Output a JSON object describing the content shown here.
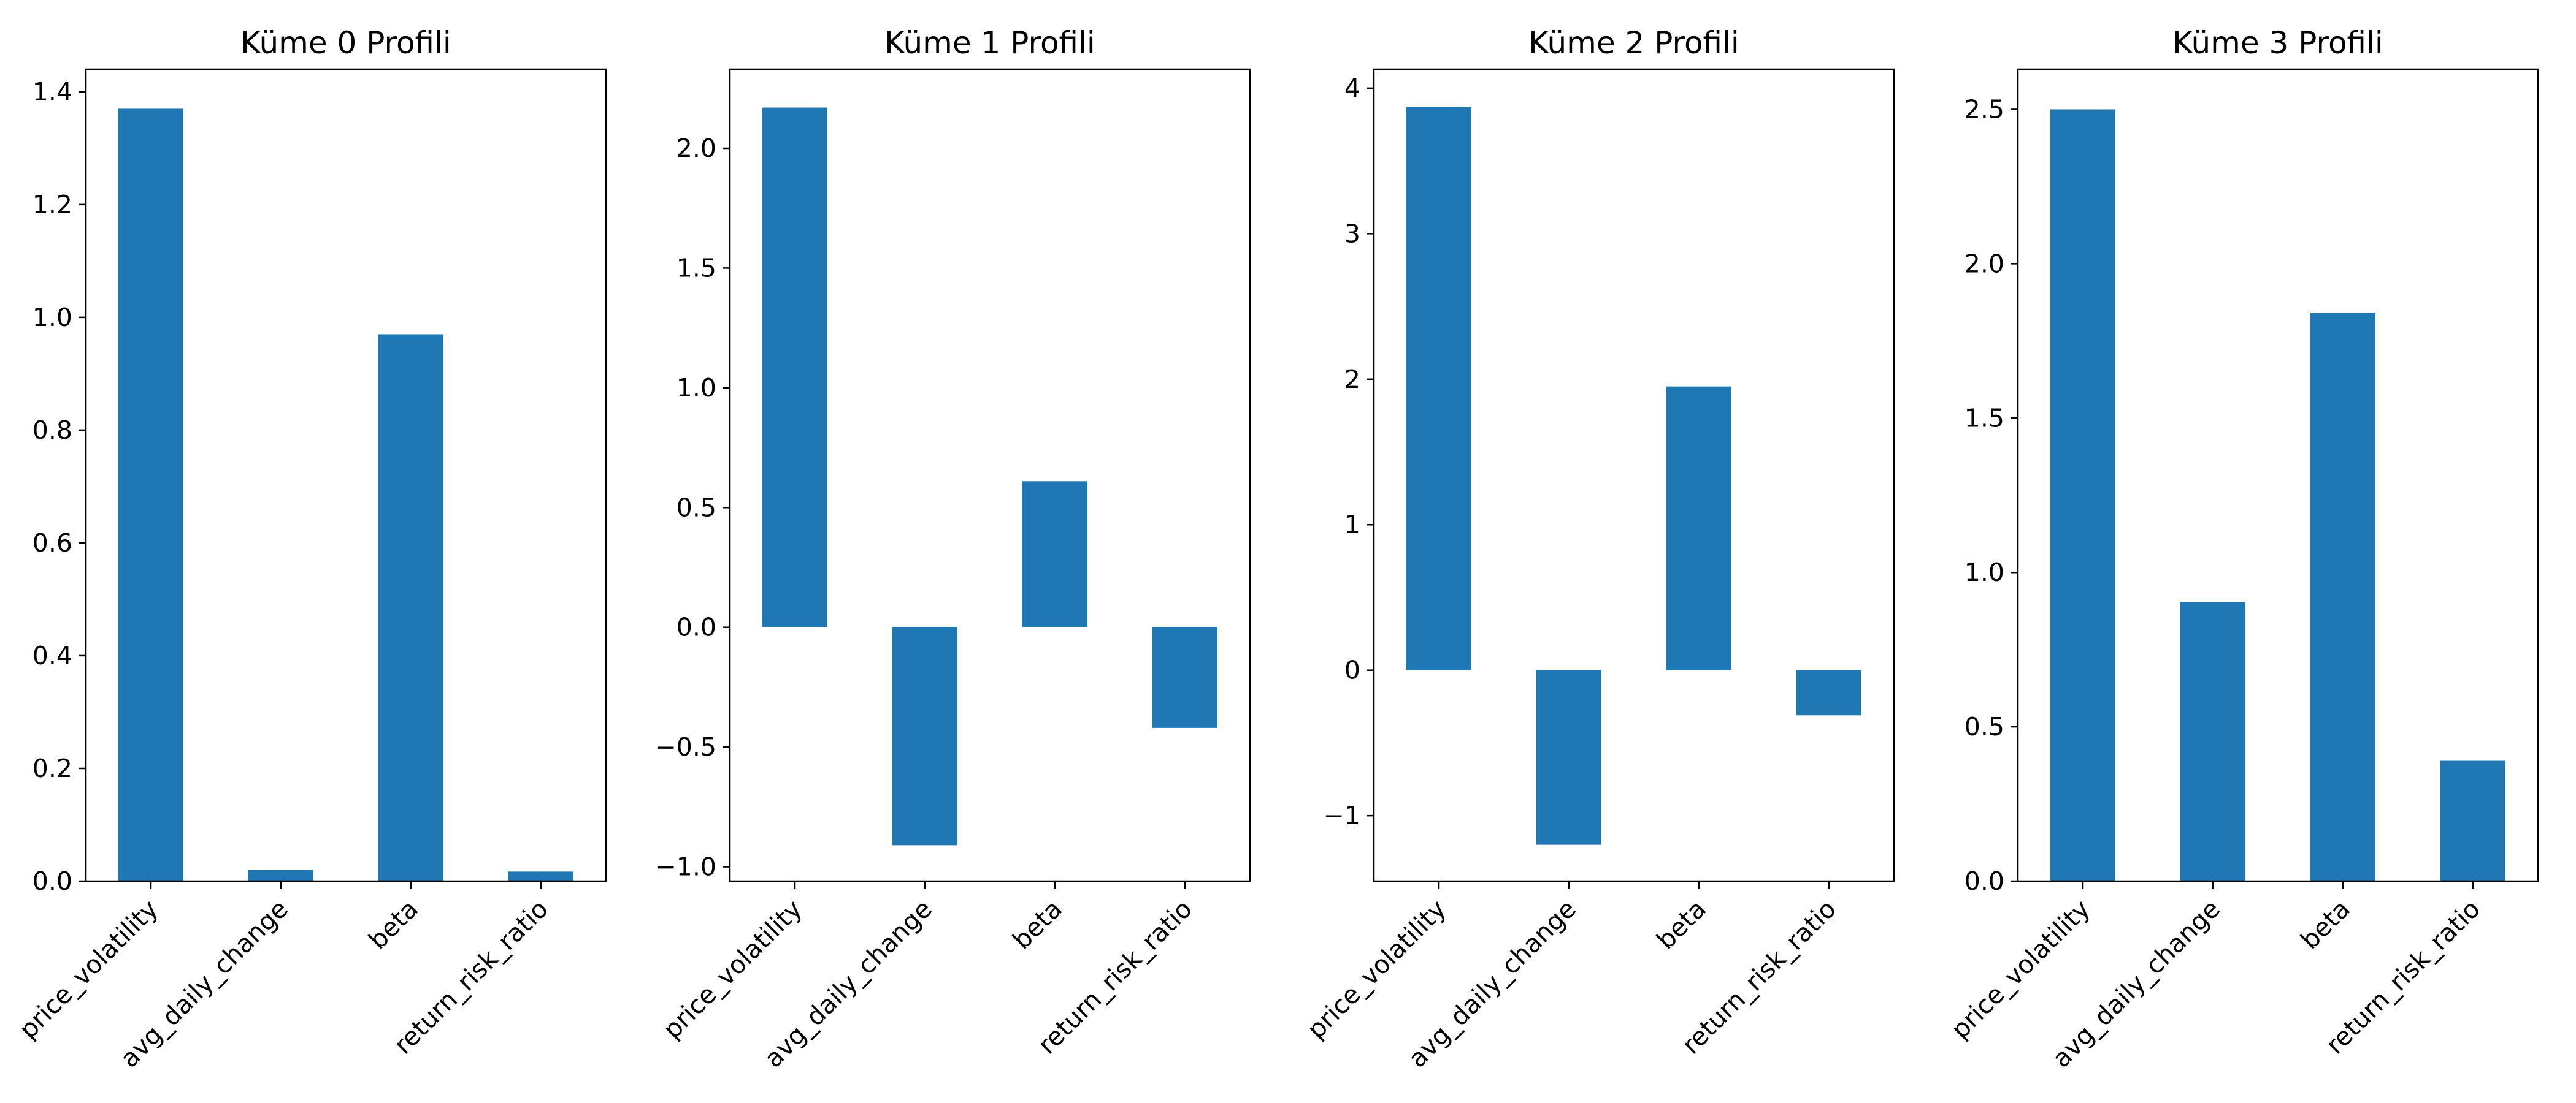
{
  "figure": {
    "bar_color": "#1f77b4",
    "axis_color": "#000000",
    "background": "#ffffff",
    "tick_label_rotation_deg": 45,
    "grid": false,
    "legend": "none"
  },
  "chart_data": [
    {
      "type": "bar",
      "title": "Küme 0 Profili",
      "categories": [
        "price_volatility",
        "avg_daily_change",
        "beta",
        "return_risk_ratio"
      ],
      "values": [
        1.37,
        0.02,
        0.97,
        0.017
      ],
      "ylim": [
        0,
        1.44
      ],
      "yticks": [
        0.0,
        0.2,
        0.4,
        0.6,
        0.8,
        1.0,
        1.2,
        1.4
      ],
      "ytick_labels": [
        "0.0",
        "0.2",
        "0.4",
        "0.6",
        "0.8",
        "1.0",
        "1.2",
        "1.4"
      ],
      "xlabel": "",
      "ylabel": ""
    },
    {
      "type": "bar",
      "title": "Küme 1 Profili",
      "categories": [
        "price_volatility",
        "avg_daily_change",
        "beta",
        "return_risk_ratio"
      ],
      "values": [
        2.17,
        -0.91,
        0.61,
        -0.42
      ],
      "ylim": [
        -1.06,
        2.33
      ],
      "yticks": [
        -1.0,
        -0.5,
        0.0,
        0.5,
        1.0,
        1.5,
        2.0
      ],
      "ytick_labels": [
        "−1.0",
        "−0.5",
        "0.0",
        "0.5",
        "1.0",
        "1.5",
        "2.0"
      ],
      "xlabel": "",
      "ylabel": ""
    },
    {
      "type": "bar",
      "title": "Küme 2 Profili",
      "categories": [
        "price_volatility",
        "avg_daily_change",
        "beta",
        "return_risk_ratio"
      ],
      "values": [
        3.87,
        -1.2,
        1.95,
        -0.31
      ],
      "ylim": [
        -1.45,
        4.13
      ],
      "yticks": [
        -1,
        0,
        1,
        2,
        3,
        4
      ],
      "ytick_labels": [
        "−1",
        "0",
        "1",
        "2",
        "3",
        "4"
      ],
      "xlabel": "",
      "ylabel": ""
    },
    {
      "type": "bar",
      "title": "Küme 3 Profili",
      "categories": [
        "price_volatility",
        "avg_daily_change",
        "beta",
        "return_risk_ratio"
      ],
      "values": [
        2.5,
        0.905,
        1.84,
        0.39
      ],
      "ylim": [
        0,
        2.63
      ],
      "yticks": [
        0.0,
        0.5,
        1.0,
        1.5,
        2.0,
        2.5
      ],
      "ytick_labels": [
        "0.0",
        "0.5",
        "1.0",
        "1.5",
        "2.0",
        "2.5"
      ],
      "xlabel": "",
      "ylabel": ""
    }
  ]
}
